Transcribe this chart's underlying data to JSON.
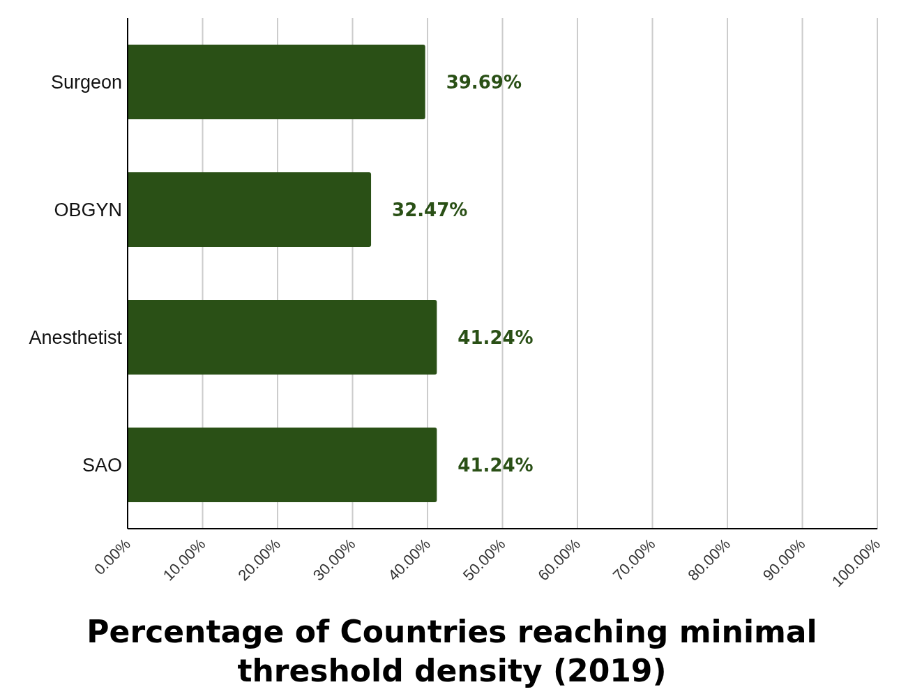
{
  "chart_data": {
    "type": "bar",
    "orientation": "horizontal",
    "title": "Percentage of Countries reaching minimal threshold density (2019)",
    "categories": [
      "Surgeon",
      "OBGYN",
      "Anesthetist",
      "SAO"
    ],
    "values": [
      39.69,
      32.47,
      41.24,
      41.24
    ],
    "value_labels": [
      "39.69%",
      "32.47%",
      "41.24%",
      "41.24%"
    ],
    "color": "#2a5016",
    "xlim": [
      0,
      100
    ],
    "xticks": [
      {
        "value": 0,
        "label": "0.00%"
      },
      {
        "value": 10,
        "label": "10.00%"
      },
      {
        "value": 20,
        "label": "20.00%"
      },
      {
        "value": 30,
        "label": "30.00%"
      },
      {
        "value": 40,
        "label": "40.00%"
      },
      {
        "value": 50,
        "label": "50.00%"
      },
      {
        "value": 60,
        "label": "60.00%"
      },
      {
        "value": 70,
        "label": "70.00%"
      },
      {
        "value": 80,
        "label": "80.00%"
      },
      {
        "value": 90,
        "label": "90.00%"
      },
      {
        "value": 100,
        "label": "100.00%"
      }
    ],
    "grid": "x"
  }
}
